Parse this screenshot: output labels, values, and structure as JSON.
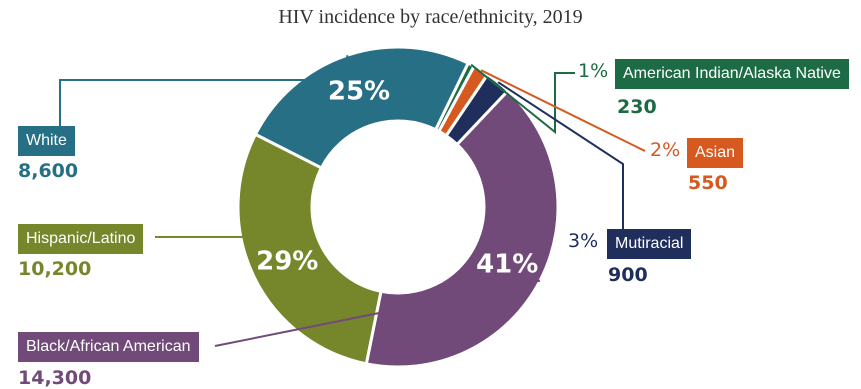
{
  "chart_data": {
    "type": "pie",
    "title": "HIV incidence by race/ethnicity, 2019",
    "slices": [
      {
        "name": "White",
        "percent": 25,
        "value": 8600,
        "value_label": "8,600",
        "color": "#266F84"
      },
      {
        "name": "American Indian/Alaska Native",
        "percent": 1,
        "value": 230,
        "value_label": "230",
        "color": "#1D6B45"
      },
      {
        "name": "Asian",
        "percent": 2,
        "value": 550,
        "value_label": "550",
        "color": "#D65920"
      },
      {
        "name": "Mutiracial",
        "percent": 3,
        "value": 900,
        "value_label": "900",
        "color": "#1F2E5B"
      },
      {
        "name": "Black/African American",
        "percent": 41,
        "value": 14300,
        "value_label": "14,300",
        "color": "#714A79"
      },
      {
        "name": "Hispanic/Latino",
        "percent": 29,
        "value": 10200,
        "value_label": "10,200",
        "color": "#76872B"
      }
    ],
    "percent_labels": [
      "25%",
      "1%",
      "2%",
      "3%",
      "41%",
      "29%"
    ],
    "legend": "callout labels"
  }
}
